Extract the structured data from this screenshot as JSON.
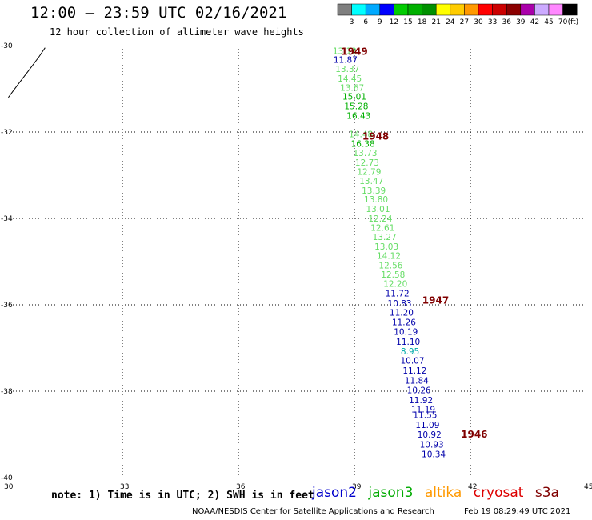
{
  "header": {
    "title": "12:00 – 23:59 UTC 02/16/2021",
    "subtitle": "12 hour collection of altimeter wave heights"
  },
  "colorbar": {
    "unit": "(ft)",
    "colors": [
      "#7f7f7f",
      "#00ffff",
      "#00aaff",
      "#0000ff",
      "#00cc00",
      "#00b000",
      "#009000",
      "#ffff00",
      "#ffcc00",
      "#ff9900",
      "#ff0000",
      "#cc0000",
      "#8b0000",
      "#aa00aa",
      "#ccaaff",
      "#ff88ff",
      "#000000"
    ],
    "labels": [
      "3",
      "6",
      "9",
      "12",
      "15",
      "18",
      "21",
      "24",
      "27",
      "30",
      "33",
      "36",
      "39",
      "42",
      "45",
      "70"
    ]
  },
  "chart_data": {
    "type": "scatter",
    "xlim": [
      30,
      45
    ],
    "ylim": [
      -40,
      -30
    ],
    "xticks": [
      "30",
      "33",
      "36",
      "39",
      "42",
      "45"
    ],
    "yticks": [
      "-30",
      "-32",
      "-34",
      "-36",
      "-38",
      "-40"
    ],
    "grid": true,
    "coastline": [
      [
        30.05,
        -31.2
      ],
      [
        30.3,
        -30.9
      ],
      [
        30.6,
        -30.55
      ],
      [
        30.85,
        -30.25
      ],
      [
        31.0,
        -30.05
      ]
    ],
    "pass_labels": [
      {
        "text": "1949",
        "lon": 39.0,
        "lat": -30.12,
        "color": "#800000"
      },
      {
        "text": "1948",
        "lon": 39.55,
        "lat": -32.08,
        "color": "#800000"
      },
      {
        "text": "1947",
        "lon": 41.1,
        "lat": -35.88,
        "color": "#800000"
      },
      {
        "text": "1946",
        "lon": 42.1,
        "lat": -38.98,
        "color": "#800000"
      }
    ],
    "points": [
      {
        "lon": 38.75,
        "lat": -30.12,
        "value": "13.12",
        "color": "#66dd66"
      },
      {
        "lon": 38.77,
        "lat": -30.32,
        "value": "11.87",
        "color": "#0000aa"
      },
      {
        "lon": 38.82,
        "lat": -30.54,
        "value": "13.37",
        "color": "#66dd66"
      },
      {
        "lon": 38.88,
        "lat": -30.76,
        "value": "14.45",
        "color": "#66dd66"
      },
      {
        "lon": 38.94,
        "lat": -30.97,
        "value": "13.67",
        "color": "#66dd66"
      },
      {
        "lon": 39.0,
        "lat": -31.18,
        "value": "15.01",
        "color": "#00b000"
      },
      {
        "lon": 39.05,
        "lat": -31.4,
        "value": "15.28",
        "color": "#00b000"
      },
      {
        "lon": 39.11,
        "lat": -31.62,
        "value": "16.43",
        "color": "#00b000"
      },
      {
        "lon": 39.17,
        "lat": -32.05,
        "value": "14.48",
        "color": "#66dd66"
      },
      {
        "lon": 39.22,
        "lat": -32.27,
        "value": "16.38",
        "color": "#00b000"
      },
      {
        "lon": 39.28,
        "lat": -32.48,
        "value": "13.73",
        "color": "#66dd66"
      },
      {
        "lon": 39.33,
        "lat": -32.7,
        "value": "12.73",
        "color": "#66dd66"
      },
      {
        "lon": 39.38,
        "lat": -32.92,
        "value": "12.79",
        "color": "#66dd66"
      },
      {
        "lon": 39.44,
        "lat": -33.13,
        "value": "13.47",
        "color": "#66dd66"
      },
      {
        "lon": 39.5,
        "lat": -33.35,
        "value": "13.39",
        "color": "#66dd66"
      },
      {
        "lon": 39.56,
        "lat": -33.56,
        "value": "13.80",
        "color": "#66dd66"
      },
      {
        "lon": 39.61,
        "lat": -33.78,
        "value": "13.01",
        "color": "#66dd66"
      },
      {
        "lon": 39.67,
        "lat": -34.0,
        "value": "12.24",
        "color": "#66dd66"
      },
      {
        "lon": 39.73,
        "lat": -34.21,
        "value": "12.61",
        "color": "#66dd66"
      },
      {
        "lon": 39.78,
        "lat": -34.43,
        "value": "13.27",
        "color": "#66dd66"
      },
      {
        "lon": 39.83,
        "lat": -34.65,
        "value": "13.03",
        "color": "#66dd66"
      },
      {
        "lon": 39.89,
        "lat": -34.86,
        "value": "14.12",
        "color": "#66dd66"
      },
      {
        "lon": 39.94,
        "lat": -35.08,
        "value": "12.56",
        "color": "#66dd66"
      },
      {
        "lon": 40.0,
        "lat": -35.3,
        "value": "12.58",
        "color": "#66dd66"
      },
      {
        "lon": 40.06,
        "lat": -35.51,
        "value": "12.20",
        "color": "#66dd66"
      },
      {
        "lon": 40.11,
        "lat": -35.73,
        "value": "11.72",
        "color": "#0000aa"
      },
      {
        "lon": 40.17,
        "lat": -35.96,
        "value": "10.83",
        "color": "#0000aa"
      },
      {
        "lon": 40.22,
        "lat": -36.18,
        "value": "11.20",
        "color": "#0000aa"
      },
      {
        "lon": 40.28,
        "lat": -36.4,
        "value": "11.26",
        "color": "#0000aa"
      },
      {
        "lon": 40.33,
        "lat": -36.62,
        "value": "10.19",
        "color": "#0000aa"
      },
      {
        "lon": 40.39,
        "lat": -36.85,
        "value": "11.10",
        "color": "#0000aa"
      },
      {
        "lon": 40.44,
        "lat": -37.07,
        "value": "8.95",
        "color": "#00aaaa"
      },
      {
        "lon": 40.5,
        "lat": -37.29,
        "value": "10.07",
        "color": "#0000aa"
      },
      {
        "lon": 40.56,
        "lat": -37.52,
        "value": "11.12",
        "color": "#0000aa"
      },
      {
        "lon": 40.61,
        "lat": -37.75,
        "value": "11.84",
        "color": "#0000aa"
      },
      {
        "lon": 40.67,
        "lat": -37.97,
        "value": "10.26",
        "color": "#0000aa"
      },
      {
        "lon": 40.72,
        "lat": -38.2,
        "value": "11.92",
        "color": "#0000aa"
      },
      {
        "lon": 40.78,
        "lat": -38.42,
        "value": "11.19",
        "color": "#0000aa"
      },
      {
        "lon": 40.83,
        "lat": -38.55,
        "value": "11.55",
        "color": "#0000aa"
      },
      {
        "lon": 40.89,
        "lat": -38.78,
        "value": "11.09",
        "color": "#0000aa"
      },
      {
        "lon": 40.94,
        "lat": -39.0,
        "value": "10.92",
        "color": "#0000aa"
      },
      {
        "lon": 41.0,
        "lat": -39.23,
        "value": "10.93",
        "color": "#0000aa"
      },
      {
        "lon": 41.05,
        "lat": -39.45,
        "value": "10.34",
        "color": "#0000aa"
      }
    ]
  },
  "footer": {
    "note": "note: 1) Time is in UTC; 2) SWH is in feet",
    "legend": [
      {
        "name": "jason2",
        "color": "#0000cc"
      },
      {
        "name": "jason3",
        "color": "#00aa00"
      },
      {
        "name": "altika",
        "color": "#ff9900"
      },
      {
        "name": "cryosat",
        "color": "#dd0000"
      },
      {
        "name": "s3a",
        "color": "#800000"
      }
    ],
    "credit": "NOAA/NESDIS Center for Satellite Applications and Research",
    "timestamp": "Feb 19 08:29:49 UTC 2021"
  }
}
